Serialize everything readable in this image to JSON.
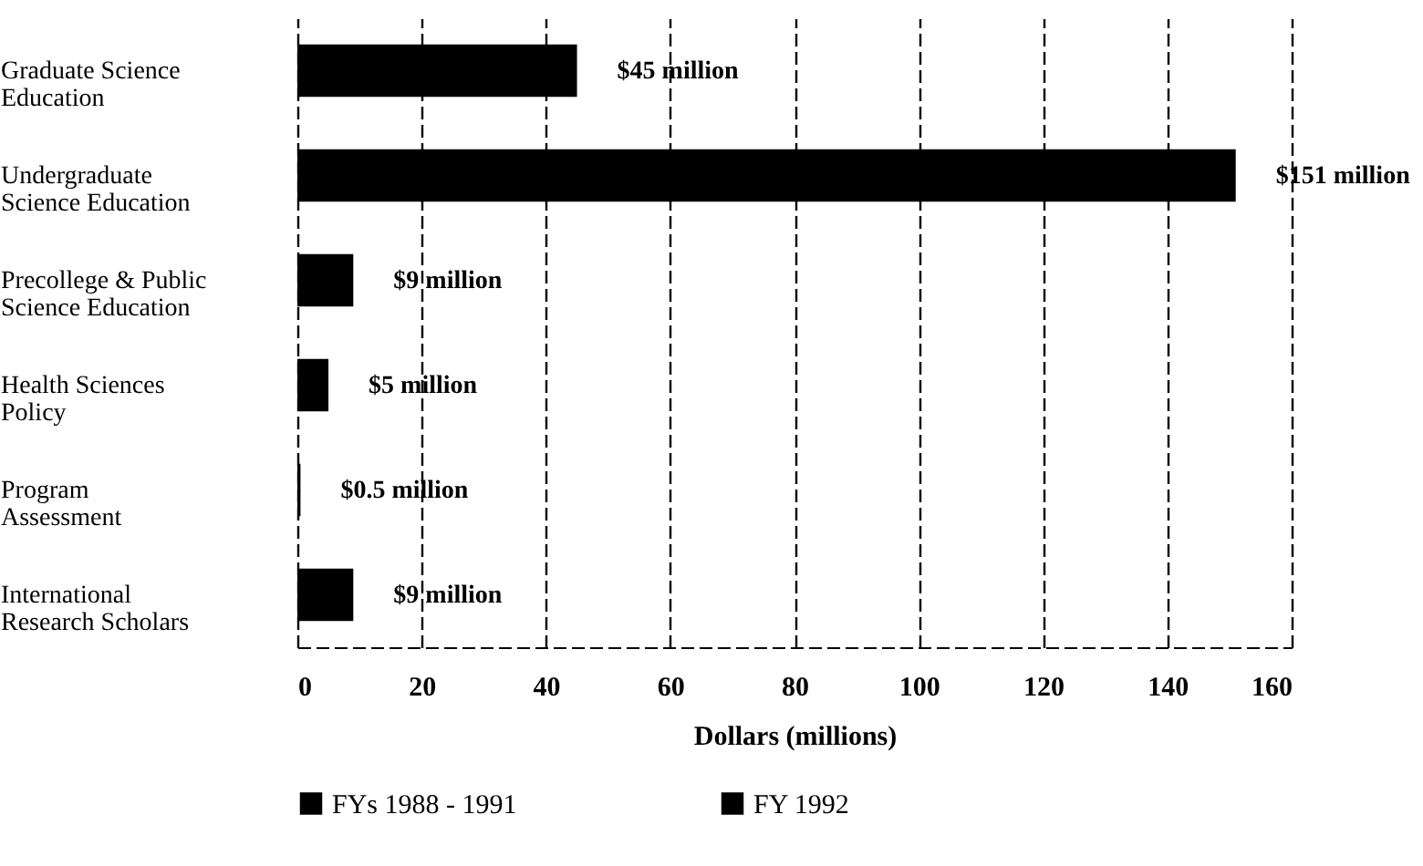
{
  "chart_data": {
    "type": "bar",
    "orientation": "horizontal",
    "categories": [
      "Graduate Science Education",
      "Undergraduate Science Education",
      "Precollege & Public Science Education",
      "Health Sciences Policy",
      "Program Assessment",
      "International Research Scholars"
    ],
    "series": [
      {
        "name": "FYs 1988 - 1991",
        "color": "#000000",
        "values": [
          45,
          151,
          9,
          5,
          0.5,
          9
        ],
        "value_labels": [
          "$45 million",
          "$151 million",
          "$9 million",
          "$5 million",
          "$0.5 million",
          "$9 million"
        ]
      },
      {
        "name": "FY 1992",
        "color": "#000000",
        "values": [
          null,
          null,
          null,
          null,
          null,
          null
        ]
      }
    ],
    "xlabel": "Dollars (millions)",
    "xlim": [
      0,
      160
    ],
    "xticks": [
      0,
      20,
      40,
      60,
      80,
      100,
      120,
      140,
      160
    ],
    "grid": "x",
    "legend": "bottom"
  }
}
